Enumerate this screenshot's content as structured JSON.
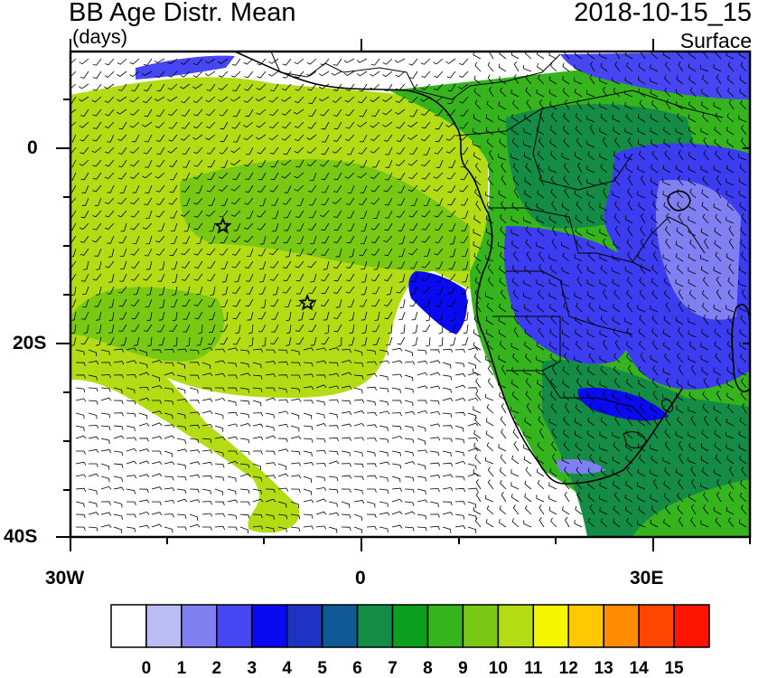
{
  "title": "BB Age Distr. Mean",
  "units": "(days)",
  "timestamp": "2018-10-15_15",
  "level": "Surface",
  "y_ticks": [
    "0",
    "20S",
    "40S"
  ],
  "x_ticks": [
    "30W",
    "0",
    "30E"
  ],
  "markers": [
    {
      "name": "star-marker",
      "lon": -14.3,
      "lat": -8.0
    },
    {
      "name": "star-marker",
      "lon": -5.6,
      "lat": -15.9
    }
  ],
  "colorbar": {
    "labels": [
      "0",
      "1",
      "2",
      "3",
      "4",
      "5",
      "6",
      "7",
      "8",
      "9",
      "10",
      "11",
      "12",
      "13",
      "14",
      "15"
    ],
    "colors": [
      "#ffffff",
      "#bcbcf5",
      "#8080f2",
      "#4646f2",
      "#0a0af0",
      "#1e32c4",
      "#0f5a96",
      "#148c46",
      "#0aa01e",
      "#36b41e",
      "#78c814",
      "#b4dc14",
      "#f5f500",
      "#ffc800",
      "#ff8c00",
      "#ff4600",
      "#ff1400"
    ]
  },
  "fields": {
    "ocean_plume": "#b4dc14",
    "plume_core": "#78c814",
    "land_green": "#36b41e",
    "land_dark": "#148c46",
    "east_blue": "#3c3cf0",
    "east_light": "#8080f2",
    "north_blue": "#4646f2",
    "coast_blue": "#0a0af0",
    "clean_air": "#ffffff"
  },
  "icons": [
    "star-icon",
    "wind-barb-icon"
  ]
}
